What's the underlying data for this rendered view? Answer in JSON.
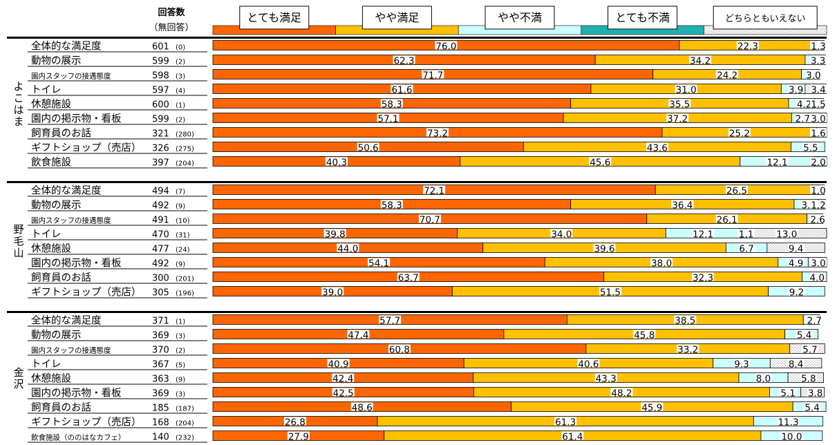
{
  "chart_data": {
    "type": "bar",
    "stacked": true,
    "orientation": "horizontal",
    "header": {
      "count_title_line1": "回答数",
      "count_title_line2": "（無回答）"
    },
    "legend": {
      "placement": "top",
      "items": [
        {
          "label": "とても満足",
          "color": "#FF6600",
          "pattern": "solid"
        },
        {
          "label": "やや満足",
          "color": "#FFC000",
          "pattern": "solid"
        },
        {
          "label": "やや不満",
          "color": "#CCFFFF",
          "pattern": "solid"
        },
        {
          "label": "とても不満",
          "color": "#20B0B0",
          "pattern": "solid"
        },
        {
          "label": "どちらともいえない",
          "color": "#FFFFFF",
          "pattern": "dots"
        }
      ]
    },
    "groups": [
      {
        "name": "よこはま",
        "rows": [
          {
            "label": "全体的な満足度",
            "n": "601",
            "na": "(0)",
            "values": [
              76.0,
              22.3,
              1.3,
              0,
              0
            ],
            "labels": [
              "76.0",
              "22.3",
              "1.3",
              "",
              ""
            ]
          },
          {
            "label": "動物の展示",
            "n": "599",
            "na": "(2)",
            "values": [
              62.3,
              34.2,
              3.3,
              0,
              0
            ],
            "labels": [
              "62.3",
              "34.2",
              "3.3",
              "",
              ""
            ]
          },
          {
            "label": "園内スタッフの接遇態度",
            "n": "598",
            "na": "(3)",
            "small": true,
            "values": [
              71.7,
              24.2,
              3.0,
              0,
              0
            ],
            "labels": [
              "71.7",
              "24.2",
              "3.0",
              "",
              ""
            ]
          },
          {
            "label": "トイレ",
            "n": "597",
            "na": "(4)",
            "values": [
              61.6,
              31.0,
              3.9,
              0,
              3.4
            ],
            "labels": [
              "61.6",
              "31.0",
              "3.9",
              "",
              "3.4"
            ]
          },
          {
            "label": "休憩施設",
            "n": "600",
            "na": "(1)",
            "values": [
              58.3,
              35.5,
              4.2,
              0,
              1.5
            ],
            "labels": [
              "58.3",
              "35.5",
              "4.2",
              "",
              "1.5"
            ]
          },
          {
            "label": "園内の掲示物・看板",
            "n": "599",
            "na": "(2)",
            "values": [
              57.1,
              37.2,
              2.7,
              0,
              3.0
            ],
            "labels": [
              "57.1",
              "37.2",
              "2.7",
              "",
              "3.0"
            ]
          },
          {
            "label": "飼育員のお話",
            "n": "321",
            "na": "(280)",
            "values": [
              73.2,
              25.2,
              1.6,
              0,
              0
            ],
            "labels": [
              "73.2",
              "25.2",
              "1.6",
              "",
              ""
            ]
          },
          {
            "label": "ギフトショップ（売店）",
            "n": "326",
            "na": "(275)",
            "values": [
              50.6,
              43.6,
              5.5,
              0,
              0
            ],
            "labels": [
              "50.6",
              "43.6",
              "5.5",
              "",
              ""
            ]
          },
          {
            "label": "飲食施設",
            "n": "397",
            "na": "(204)",
            "values": [
              40.3,
              45.6,
              12.1,
              2.0,
              0
            ],
            "labels": [
              "40.3",
              "45.6",
              "12.1",
              "2.0",
              ""
            ]
          }
        ]
      },
      {
        "name": "野毛山",
        "rows": [
          {
            "label": "全体的な満足度",
            "n": "494",
            "na": "(7)",
            "values": [
              72.1,
              26.5,
              1.0,
              0,
              0
            ],
            "labels": [
              "72.1",
              "26.5",
              "1.0",
              "",
              ""
            ]
          },
          {
            "label": "動物の展示",
            "n": "492",
            "na": "(9)",
            "values": [
              58.3,
              36.4,
              3.9,
              0,
              1.2
            ],
            "labels": [
              "58.3",
              "36.4",
              "3.9",
              "",
              "1.2"
            ]
          },
          {
            "label": "園内スタッフの接遇態度",
            "n": "491",
            "na": "(10)",
            "small": true,
            "values": [
              70.7,
              26.1,
              2.6,
              0,
              0
            ],
            "labels": [
              "70.7",
              "26.1",
              "2.6",
              "",
              ""
            ]
          },
          {
            "label": "トイレ",
            "n": "470",
            "na": "(31)",
            "values": [
              39.8,
              34.0,
              12.1,
              1.1,
              13.0
            ],
            "labels": [
              "39.8",
              "34.0",
              "12.1",
              "1.1",
              "13.0"
            ]
          },
          {
            "label": "休憩施設",
            "n": "477",
            "na": "(24)",
            "values": [
              44.0,
              39.6,
              6.7,
              0,
              9.4
            ],
            "labels": [
              "44.0",
              "39.6",
              "6.7",
              "",
              "9.4"
            ]
          },
          {
            "label": "園内の掲示物・看板",
            "n": "492",
            "na": "(9)",
            "values": [
              54.1,
              38.0,
              4.9,
              0,
              3.0
            ],
            "labels": [
              "54.1",
              "38.0",
              "4.9",
              "",
              "3.0"
            ]
          },
          {
            "label": "飼育員のお話",
            "n": "300",
            "na": "(201)",
            "values": [
              63.7,
              32.3,
              4.0,
              0,
              0
            ],
            "labels": [
              "63.7",
              "32.3",
              "4.0",
              "",
              ""
            ]
          },
          {
            "label": "ギフトショップ（売店）",
            "n": "305",
            "na": "(196)",
            "values": [
              39.0,
              51.5,
              9.2,
              0,
              0
            ],
            "labels": [
              "39.0",
              "51.5",
              "9.2",
              "",
              ""
            ]
          }
        ]
      },
      {
        "name": "金沢",
        "rows": [
          {
            "label": "全体的な満足度",
            "n": "371",
            "na": "(1)",
            "values": [
              57.7,
              38.5,
              2.7,
              0,
              0
            ],
            "labels": [
              "57.7",
              "38.5",
              "2.7",
              "",
              ""
            ]
          },
          {
            "label": "動物の展示",
            "n": "369",
            "na": "(3)",
            "values": [
              47.4,
              45.8,
              5.4,
              0,
              0
            ],
            "labels": [
              "47.4",
              "45.8",
              "5.4",
              "",
              ""
            ]
          },
          {
            "label": "園内スタッフの接遇態度",
            "n": "370",
            "na": "(2)",
            "small": true,
            "values": [
              60.8,
              33.2,
              0,
              0,
              5.7
            ],
            "labels": [
              "60.8",
              "33.2",
              "",
              "",
              "5.7"
            ]
          },
          {
            "label": "トイレ",
            "n": "367",
            "na": "(5)",
            "values": [
              40.9,
              40.6,
              9.3,
              0,
              8.4
            ],
            "labels": [
              "40.9",
              "40.6",
              "9.3",
              "",
              "8.4"
            ]
          },
          {
            "label": "休憩施設",
            "n": "363",
            "na": "(9)",
            "values": [
              42.4,
              43.3,
              8.0,
              0,
              5.8
            ],
            "labels": [
              "42.4",
              "43.3",
              "8.0",
              "",
              "5.8"
            ]
          },
          {
            "label": "園内の掲示物・看板",
            "n": "369",
            "na": "(3)",
            "values": [
              42.5,
              48.2,
              5.1,
              0,
              3.8
            ],
            "labels": [
              "42.5",
              "48.2",
              "5.1",
              "",
              "3.8"
            ]
          },
          {
            "label": "飼育員のお話",
            "n": "185",
            "na": "(187)",
            "values": [
              48.6,
              45.9,
              5.4,
              0,
              0
            ],
            "labels": [
              "48.6",
              "45.9",
              "5.4",
              "",
              ""
            ]
          },
          {
            "label": "ギフトショップ（売店）",
            "n": "168",
            "na": "(204)",
            "values": [
              26.8,
              61.3,
              11.3,
              0,
              0
            ],
            "labels": [
              "26.8",
              "61.3",
              "11.3",
              "",
              ""
            ]
          },
          {
            "label": "飲食施設（ののはなカフェ）",
            "n": "140",
            "na": "(232)",
            "small": true,
            "values": [
              27.9,
              61.4,
              10.0,
              0,
              0
            ],
            "labels": [
              "27.9",
              "61.4",
              "10.0",
              "",
              ""
            ]
          }
        ]
      }
    ],
    "xlim": [
      0,
      100
    ],
    "grid": false
  }
}
